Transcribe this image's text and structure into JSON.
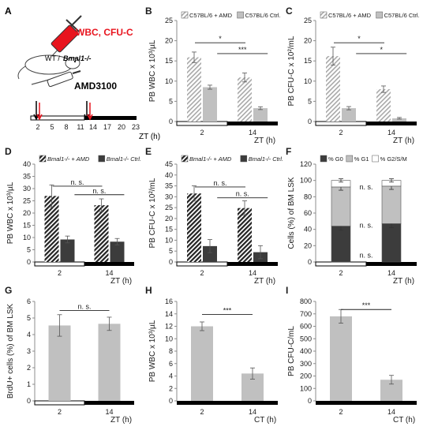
{
  "colors": {
    "light_bar": "#c0c0c0",
    "dark_bar": "#3c3c3c",
    "axis": "#8c8c8c",
    "text": "#1a1a1a",
    "red": "#e8141e",
    "black": "#000000"
  },
  "panel_a": {
    "letter": "A",
    "label_red": "WBC, CFU-C",
    "label_mouse_wt": "WT / ",
    "label_mouse_gene": "Bmal1-/-",
    "label_drug": "AMD3100",
    "ticks": [
      "2",
      "5",
      "8",
      "11",
      "14",
      "17",
      "20",
      "23"
    ],
    "xlabel": "ZT (h)"
  },
  "chart_data": [
    {
      "panel": "B",
      "type": "bar",
      "categories": [
        "2",
        "14"
      ],
      "series": [
        {
          "name": "C57BL/6 + AMD",
          "values": [
            15.9,
            10.9
          ],
          "errors": [
            1.3,
            1.1
          ],
          "pattern": "hatch-light"
        },
        {
          "name": "C57BL/6 Ctrl.",
          "values": [
            8.5,
            3.3
          ],
          "errors": [
            0.5,
            0.35
          ],
          "pattern": "solid-light"
        }
      ],
      "ylabel": "PB WBC x 10³/µL",
      "xlabel": "ZT (h)",
      "ylim": [
        0,
        25
      ],
      "yticks": [
        0,
        5,
        10,
        15,
        20,
        25
      ],
      "day_night_bar": true,
      "annotations": [
        {
          "text": "*",
          "from": 0,
          "to": 1,
          "level": 19.5
        },
        {
          "text": "***",
          "from": 0.3,
          "to": 1.3,
          "level": 16.8
        }
      ],
      "legend": "top"
    },
    {
      "panel": "C",
      "type": "bar",
      "categories": [
        "2",
        "14"
      ],
      "series": [
        {
          "name": "C57BL/6 + AMD",
          "values": [
            16.2,
            8.0
          ],
          "errors": [
            2.2,
            0.8
          ],
          "pattern": "hatch-light"
        },
        {
          "name": "C57BL/6 Ctrl.",
          "values": [
            3.3,
            0.8
          ],
          "errors": [
            0.4,
            0.2
          ],
          "pattern": "solid-light"
        }
      ],
      "ylabel": "PB CFU-C x 10²/mL",
      "xlabel": "ZT (h)",
      "ylim": [
        0,
        25
      ],
      "yticks": [
        0,
        5,
        10,
        15,
        20,
        25
      ],
      "day_night_bar": true,
      "annotations": [
        {
          "text": "*",
          "from": 0,
          "to": 1,
          "level": 19.5
        },
        {
          "text": "*",
          "from": 0.3,
          "to": 1.3,
          "level": 16.8
        }
      ],
      "legend": "top"
    },
    {
      "panel": "D",
      "type": "bar",
      "categories": [
        "2",
        "14"
      ],
      "series": [
        {
          "name": "Bmal1-/- + AMD",
          "values": [
            27.0,
            23.2
          ],
          "errors": [
            4.5,
            2.6
          ],
          "pattern": "hatch-dark"
        },
        {
          "name": "Bmal1-/- Ctrl.",
          "values": [
            9.2,
            8.3
          ],
          "errors": [
            1.4,
            1.3
          ],
          "pattern": "solid-dark"
        }
      ],
      "ylabel": "PB WBC x 10³/µL",
      "xlabel": "ZT (h)",
      "ylim": [
        0,
        40
      ],
      "yticks": [
        0,
        5,
        10,
        15,
        20,
        25,
        30,
        35,
        40
      ],
      "day_night_bar": true,
      "annotations": [
        {
          "text": "n. s.",
          "from": 0,
          "to": 1,
          "level": 31.0
        },
        {
          "text": "n. s.",
          "from": 0.3,
          "to": 1.3,
          "level": 27.5
        }
      ],
      "legend": "top"
    },
    {
      "panel": "E",
      "type": "bar",
      "categories": [
        "2",
        "14"
      ],
      "series": [
        {
          "name": "Bmal1-/- + AMD",
          "values": [
            31.5,
            24.8
          ],
          "errors": [
            3.5,
            3.3
          ],
          "pattern": "hatch-dark"
        },
        {
          "name": "Bmal1-/- Ctrl.",
          "values": [
            7.3,
            4.5
          ],
          "errors": [
            3.0,
            3.0
          ],
          "pattern": "solid-dark"
        }
      ],
      "ylabel": "PB CFU-C x 10²/mL",
      "xlabel": "ZT (h)",
      "ylim": [
        0,
        45
      ],
      "yticks": [
        0,
        5,
        10,
        15,
        20,
        25,
        30,
        35,
        40,
        45
      ],
      "day_night_bar": true,
      "annotations": [
        {
          "text": "n. s.",
          "from": 0,
          "to": 1,
          "level": 34.5
        },
        {
          "text": "n. s.",
          "from": 0.3,
          "to": 1.3,
          "level": 29.5
        }
      ],
      "legend": "top"
    },
    {
      "panel": "F",
      "type": "bar",
      "stacked": true,
      "categories": [
        "2",
        "14"
      ],
      "series": [
        {
          "name": "% G0",
          "values": [
            44,
            47
          ],
          "errors": [
            5,
            5
          ],
          "color": "dark"
        },
        {
          "name": "% G1",
          "values": [
            48,
            46
          ],
          "errors": [
            4,
            4
          ],
          "color": "light"
        },
        {
          "name": "% G2/S/M",
          "values": [
            8,
            7
          ],
          "errors": [
            2,
            2
          ],
          "color": "white"
        }
      ],
      "ylabel": "Cells (%) of BM LSK",
      "xlabel": "ZT (h)",
      "ylim": [
        0,
        120
      ],
      "yticks": [
        0,
        20,
        40,
        60,
        80,
        100,
        120
      ],
      "day_night_bar": true,
      "annotations": [
        {
          "text": "n. s.",
          "level": 92
        },
        {
          "text": "n. s.",
          "level": 45
        },
        {
          "text": "n. s.",
          "level": 8
        }
      ],
      "legend": "top"
    },
    {
      "panel": "G",
      "type": "bar",
      "categories": [
        "2",
        "14"
      ],
      "series": [
        {
          "name": "",
          "values": [
            4.55,
            4.65
          ],
          "errors": [
            0.65,
            0.4
          ],
          "pattern": "solid-light"
        }
      ],
      "ylabel": "BrdU+ cells (%) of BM LSK",
      "xlabel": "ZT (h)",
      "ylim": [
        0,
        6
      ],
      "yticks": [
        0,
        1,
        2,
        3,
        4,
        5,
        6
      ],
      "day_night_bar": true,
      "annotations": [
        {
          "text": "n. s.",
          "from": 0,
          "to": 1,
          "level": 5.45
        }
      ]
    },
    {
      "panel": "H",
      "type": "bar",
      "categories": [
        "2",
        "14"
      ],
      "series": [
        {
          "name": "",
          "values": [
            12.0,
            4.4
          ],
          "errors": [
            0.7,
            0.9
          ],
          "pattern": "solid-light"
        }
      ],
      "ylabel": "PB WBC x 10³/µL",
      "xlabel": "CT (h)",
      "ylim": [
        0,
        16
      ],
      "yticks": [
        0,
        2,
        4,
        6,
        8,
        10,
        12,
        14,
        16
      ],
      "day_night_bar": "dark",
      "annotations": [
        {
          "text": "***",
          "from": 0,
          "to": 1,
          "level": 13.9
        }
      ]
    },
    {
      "panel": "I",
      "type": "bar",
      "categories": [
        "2",
        "14"
      ],
      "series": [
        {
          "name": "",
          "values": [
            680,
            170
          ],
          "errors": [
            55,
            35
          ],
          "pattern": "solid-light"
        }
      ],
      "ylabel": "PB CFU-C/mL",
      "xlabel": "CT (h)",
      "ylim": [
        0,
        800
      ],
      "yticks": [
        0,
        100,
        200,
        300,
        400,
        500,
        600,
        700,
        800
      ],
      "day_night_bar": "dark",
      "annotations": [
        {
          "text": "***",
          "from": 0,
          "to": 1,
          "level": 735
        }
      ]
    }
  ]
}
